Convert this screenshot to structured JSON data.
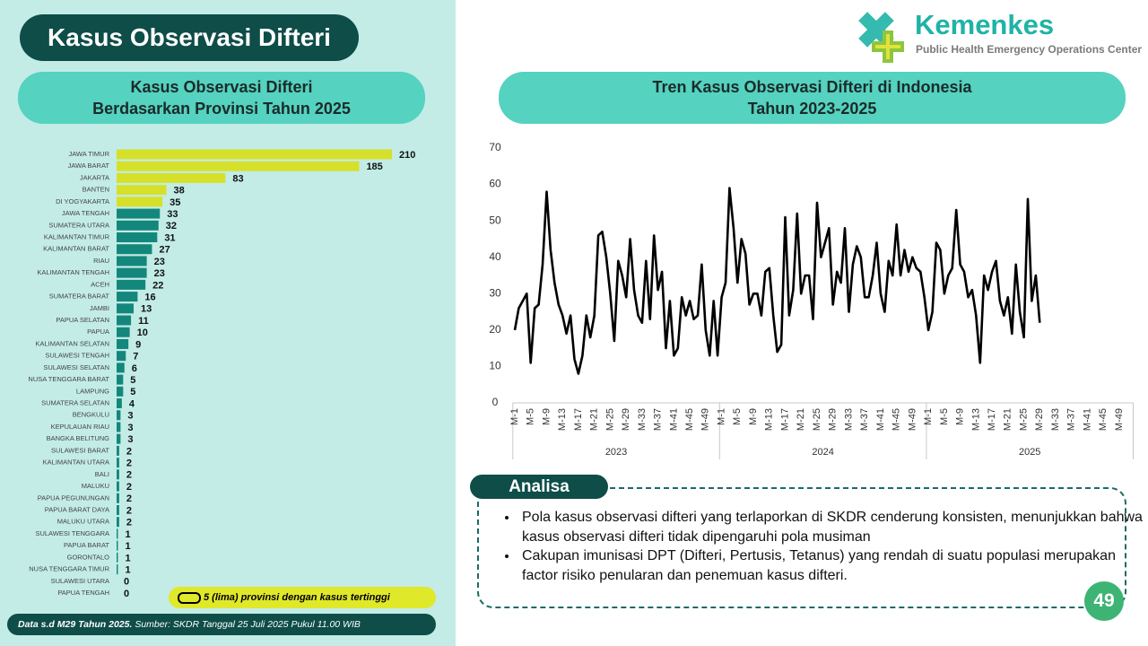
{
  "header": {
    "title": "Kasus Observasi Difteri",
    "logo_name": "Kemenkes",
    "logo_subtitle": "Public Health Emergency Operations Center"
  },
  "chart_data": [
    {
      "type": "bar",
      "orientation": "horizontal",
      "title": [
        "Kasus Observasi Difteri",
        "Berdasarkan Provinsi Tahun 2025"
      ],
      "categories": [
        "JAWA TIMUR",
        "JAWA BARAT",
        "JAKARTA",
        "BANTEN",
        "DI YOGYAKARTA",
        "JAWA TENGAH",
        "SUMATERA UTARA",
        "KALIMANTAN TIMUR",
        "KALIMANTAN BARAT",
        "RIAU",
        "KALIMANTAN TENGAH",
        "ACEH",
        "SUMATERA BARAT",
        "JAMBI",
        "PAPUA SELATAN",
        "PAPUA",
        "KALIMANTAN SELATAN",
        "SULAWESI TENGAH",
        "SULAWESI SELATAN",
        "NUSA TENGGARA BARAT",
        "LAMPUNG",
        "SUMATERA SELATAN",
        "BENGKULU",
        "KEPULAUAN RIAU",
        "BANGKA BELITUNG",
        "SULAWESI BARAT",
        "KALIMANTAN UTARA",
        "BALI",
        "MALUKU",
        "PAPUA PEGUNUNGAN",
        "PAPUA BARAT DAYA",
        "MALUKU UTARA",
        "SULAWESI TENGGARA",
        "PAPUA BARAT",
        "GORONTALO",
        "NUSA TENGGARA TIMUR",
        "SULAWESI UTARA",
        "PAPUA TENGAH"
      ],
      "values": [
        210,
        185,
        83,
        38,
        35,
        33,
        32,
        31,
        27,
        23,
        23,
        22,
        16,
        13,
        11,
        10,
        9,
        7,
        6,
        5,
        5,
        4,
        3,
        3,
        3,
        2,
        2,
        2,
        2,
        2,
        2,
        2,
        1,
        1,
        1,
        1,
        0,
        0
      ],
      "colors": [
        "#d6e02a",
        "#d6e02a",
        "#d6e02a",
        "#d6e02a",
        "#d6e02a",
        "#14877c",
        "#14877c",
        "#14877c",
        "#14877c",
        "#14877c",
        "#14877c",
        "#14877c",
        "#14877c",
        "#14877c",
        "#14877c",
        "#14877c",
        "#14877c",
        "#14877c",
        "#14877c",
        "#14877c",
        "#14877c",
        "#14877c",
        "#14877c",
        "#14877c",
        "#14877c",
        "#14877c",
        "#14877c",
        "#14877c",
        "#14877c",
        "#14877c",
        "#14877c",
        "#14877c",
        "#14877c",
        "#14877c",
        "#14877c",
        "#14877c",
        "#14877c",
        "#14877c"
      ],
      "note": "5 (lima) provinsi dengan kasus tertinggi"
    },
    {
      "type": "line",
      "title": [
        "Tren Kasus Observasi Difteri di Indonesia",
        "Tahun 2023-2025"
      ],
      "groups": [
        "2023",
        "2024",
        "2025"
      ],
      "categories": [
        "M-1",
        null,
        null,
        null,
        "M-5",
        null,
        null,
        null,
        "M-9",
        null,
        null,
        null,
        "M-13",
        null,
        null,
        null,
        "M-17",
        null,
        null,
        null,
        "M-21",
        null,
        null,
        null,
        "M-25",
        null,
        null,
        null,
        "M-29",
        null,
        null,
        null,
        "M-33",
        null,
        null,
        null,
        "M-37",
        null,
        null,
        null,
        "M-41",
        null,
        null,
        null,
        "M-45",
        null,
        null,
        null,
        "M-49",
        null,
        null,
        null,
        "M-1",
        null,
        null,
        null,
        "M-5",
        null,
        null,
        null,
        "M-9",
        null,
        null,
        null,
        "M-13",
        null,
        null,
        null,
        "M-17",
        null,
        null,
        null,
        "M-21",
        null,
        null,
        null,
        "M-25",
        null,
        null,
        null,
        "M-29",
        null,
        null,
        null,
        "M-33",
        null,
        null,
        null,
        "M-37",
        null,
        null,
        null,
        "M-41",
        null,
        null,
        null,
        "M-45",
        null,
        null,
        null,
        "M-49",
        null,
        null,
        null,
        "M-1",
        null,
        null,
        null,
        "M-5",
        null,
        null,
        null,
        "M-9",
        null,
        null,
        null,
        "M-13",
        null,
        null,
        null,
        "M-17",
        null,
        null,
        null,
        "M-21",
        null,
        null,
        null,
        "M-25",
        null,
        null,
        null,
        "M-29",
        null,
        null,
        null,
        "M-33",
        null,
        null,
        null,
        "M-37",
        null,
        null,
        null,
        "M-41",
        null,
        null,
        null,
        "M-45",
        null,
        null,
        null,
        "M-49",
        null,
        null,
        null
      ],
      "values": [
        20,
        26,
        28,
        30,
        11,
        26,
        27,
        38,
        58,
        42,
        33,
        27,
        24,
        19,
        24,
        12,
        8,
        13,
        24,
        18,
        24,
        46,
        47,
        40,
        30,
        17,
        39,
        35,
        29,
        45,
        31,
        24,
        22,
        39,
        23,
        46,
        31,
        36,
        15,
        28,
        13,
        15,
        29,
        24,
        28,
        23,
        24,
        38,
        20,
        13,
        28,
        13,
        29,
        33,
        59,
        48,
        33,
        45,
        41,
        27,
        30,
        30,
        24,
        36,
        37,
        24,
        14,
        16,
        51,
        24,
        31,
        52,
        30,
        35,
        35,
        23,
        55,
        40,
        44,
        48,
        27,
        36,
        33,
        48,
        25,
        38,
        43,
        40,
        29,
        29,
        35,
        44,
        30,
        25,
        39,
        35,
        49,
        35,
        42,
        36,
        40,
        37,
        36,
        29,
        20,
        25,
        44,
        42,
        30,
        35,
        37,
        53,
        38,
        36,
        29,
        31,
        24,
        11,
        35,
        31,
        36,
        39,
        28,
        24,
        29,
        19,
        38,
        25,
        18,
        56,
        28,
        35,
        22,
        null,
        null,
        null,
        null,
        null,
        null,
        null,
        null,
        null,
        null,
        null,
        null,
        null,
        null,
        null,
        null,
        null,
        null,
        null,
        null,
        null,
        null,
        null
      ],
      "color": "#000000",
      "ylim": [
        0,
        70
      ],
      "yticks": [
        0,
        10,
        20,
        30,
        40,
        50,
        60,
        70
      ],
      "grid": false
    }
  ],
  "analysis": {
    "label": "Analisa",
    "items": [
      "Pola kasus observasi difteri yang terlaporkan di SKDR cenderung konsisten, menunjukkan bahwa kasus observasi difteri tidak dipengaruhi pola musiman",
      "Cakupan imunisasi DPT (Difteri, Pertusis, Tetanus) yang rendah di suatu populasi merupakan factor risiko penularan dan penemuan kasus difteri."
    ]
  },
  "footer": {
    "period": "Data s.d M29 Tahun 2025.",
    "source": "Sumber: SKDR Tanggal 25 Juli 2025 Pukul 11.00 WIB"
  },
  "page_number": "49"
}
